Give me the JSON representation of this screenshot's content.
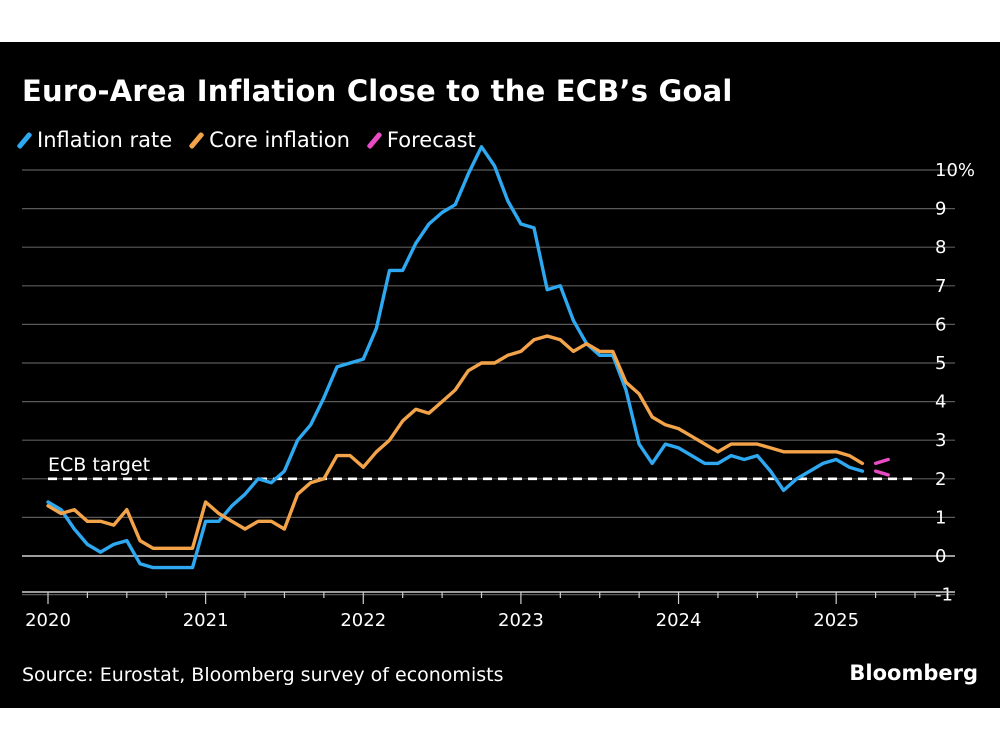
{
  "chart_data": {
    "type": "line",
    "title": "Euro-Area Inflation Close to the ECB’s Goal",
    "xlabel": "",
    "ylabel": "",
    "x_tick_labels": [
      "2020",
      "2021",
      "2022",
      "2023",
      "2024",
      "2025"
    ],
    "x_tick_values": [
      2020,
      2021,
      2022,
      2023,
      2024,
      2025
    ],
    "y_tick_labels": [
      "10%",
      "9",
      "8",
      "7",
      "6",
      "5",
      "4",
      "3",
      "2",
      "1",
      "0",
      "-1"
    ],
    "y_tick_values": [
      10,
      9,
      8,
      7,
      6,
      5,
      4,
      3,
      2,
      1,
      0,
      -1
    ],
    "xlim": [
      2020,
      2025.5
    ],
    "ylim": [
      -1.5,
      10.5
    ],
    "grid": true,
    "legend_position": "top-left",
    "colors": {
      "inflation": "#2ea8f1",
      "core": "#f3a44a",
      "forecast": "#e94bc4",
      "target": "#ffffff",
      "grid": "#5a5a5a",
      "zero": "#cfcfcf"
    },
    "legend": [
      {
        "name": "Inflation rate",
        "color": "#2ea8f1"
      },
      {
        "name": "Core inflation",
        "color": "#f3a44a"
      },
      {
        "name": "Forecast",
        "color": "#e94bc4"
      }
    ],
    "annotations": [
      {
        "label": "ECB target",
        "y": 2
      }
    ],
    "series": [
      {
        "name": "Inflation rate",
        "color": "#2ea8f1",
        "start": 2020.0,
        "step": 0.08333,
        "values": [
          1.4,
          1.2,
          0.7,
          0.3,
          0.1,
          0.3,
          0.4,
          -0.2,
          -0.3,
          -0.3,
          -0.3,
          -0.3,
          0.9,
          0.9,
          1.3,
          1.6,
          2.0,
          1.9,
          2.2,
          3.0,
          3.4,
          4.1,
          4.9,
          5.0,
          5.1,
          5.9,
          7.4,
          7.4,
          8.1,
          8.6,
          8.9,
          9.1,
          9.9,
          10.6,
          10.1,
          9.2,
          8.6,
          8.5,
          6.9,
          7.0,
          6.1,
          5.5,
          5.2,
          5.2,
          4.3,
          2.9,
          2.4,
          2.9,
          2.8,
          2.6,
          2.4,
          2.4,
          2.6,
          2.5,
          2.6,
          2.2,
          1.7,
          2.0,
          2.2,
          2.4,
          2.5,
          2.3,
          2.2
        ],
        "extra_point": [
          2020.0,
          1.3
        ]
      },
      {
        "name": "Core inflation",
        "color": "#f3a44a",
        "start": 2020.0,
        "step": 0.08333,
        "values": [
          1.3,
          1.1,
          1.2,
          0.9,
          0.9,
          0.8,
          1.2,
          0.4,
          0.2,
          0.2,
          0.2,
          0.2,
          1.4,
          1.1,
          0.9,
          0.7,
          0.9,
          0.9,
          0.7,
          1.6,
          1.9,
          2.0,
          2.6,
          2.6,
          2.3,
          2.7,
          3.0,
          3.5,
          3.8,
          3.7,
          4.0,
          4.3,
          4.8,
          5.0,
          5.0,
          5.2,
          5.3,
          5.6,
          5.7,
          5.6,
          5.3,
          5.5,
          5.3,
          5.3,
          4.5,
          4.2,
          3.6,
          3.4,
          3.3,
          3.1,
          2.9,
          2.7,
          2.9,
          2.9,
          2.9,
          2.8,
          2.7,
          2.7,
          2.7,
          2.7,
          2.7,
          2.6,
          2.4
        ],
        "extra_point": [
          2020.0,
          1.3
        ]
      },
      {
        "name": "Forecast (inflation)",
        "color": "#e94bc4",
        "points": [
          [
            2025.25,
            2.2
          ],
          [
            2025.33,
            2.1
          ]
        ]
      },
      {
        "name": "Forecast (core)",
        "color": "#e94bc4",
        "points": [
          [
            2025.25,
            2.4
          ],
          [
            2025.33,
            2.5
          ]
        ]
      }
    ]
  },
  "legend_labels": {
    "inflation": "Inflation rate",
    "core": "Core inflation",
    "forecast": "Forecast"
  },
  "footer": {
    "source": "Source: Eurostat, Bloomberg survey of economists",
    "brand": "Bloomberg"
  }
}
